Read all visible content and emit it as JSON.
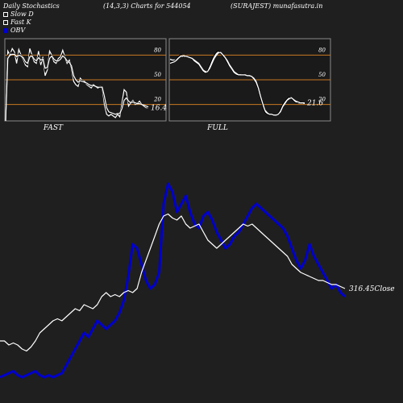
{
  "header": {
    "title": "Daily Stochastics",
    "params": "(14,3,3) Charts for 544054",
    "symbol": "(SURAJEST) munafasutra.in"
  },
  "legend": {
    "items": [
      {
        "label": "Slow  D",
        "icon": "white-square"
      },
      {
        "label": "Fast K",
        "icon": "white-square"
      },
      {
        "label": "OBV",
        "icon": "blue-square"
      }
    ]
  },
  "colors": {
    "background": "#1f1f1f",
    "panel": "#1a1a1a",
    "grid": "#c87820",
    "stoch_line": "#ffffff",
    "obv": "#0000cc",
    "price": "#ffffff"
  },
  "chart_data": [
    {
      "type": "line",
      "title": "FAST",
      "y_ticks": [
        80,
        50,
        20
      ],
      "ylim": [
        0,
        100
      ],
      "last_value_label": "16.4",
      "series": [
        {
          "values": [
            0,
            85,
            80,
            88,
            84,
            70,
            87,
            80,
            75,
            68,
            66,
            88,
            80,
            72,
            70,
            85,
            68,
            78,
            55,
            62,
            85,
            80,
            72,
            70,
            76,
            78,
            86,
            78,
            70,
            74,
            64,
            48,
            44,
            42,
            52,
            49,
            48,
            44,
            42,
            40,
            44,
            42,
            40,
            42,
            41,
            20,
            8,
            6,
            8,
            6,
            4,
            8,
            5,
            22,
            38,
            35,
            18,
            22,
            25,
            20,
            21,
            24,
            20,
            18,
            16,
            16
          ]
        },
        {
          "values": [
            0,
            80,
            82,
            84,
            82,
            76,
            82,
            80,
            76,
            70,
            68,
            82,
            80,
            74,
            72,
            80,
            72,
            76,
            60,
            64,
            80,
            80,
            74,
            72,
            74,
            76,
            82,
            78,
            72,
            72,
            66,
            52,
            47,
            45,
            50,
            49,
            47,
            45,
            43,
            42,
            43,
            42,
            41,
            42,
            41,
            25,
            12,
            9,
            9,
            8,
            7,
            9,
            8,
            18,
            30,
            30,
            22,
            22,
            24,
            21,
            21,
            22,
            20,
            19,
            17,
            16
          ]
        },
        {
          "values": [
            0,
            76,
            80,
            81,
            81,
            78,
            80,
            79,
            77,
            72,
            70,
            78,
            79,
            75,
            73,
            77,
            74,
            75,
            64,
            65,
            76,
            79,
            75,
            73,
            73,
            75,
            79,
            77,
            73,
            71,
            67,
            55,
            50,
            47,
            49,
            48,
            47,
            46,
            44,
            43,
            43,
            42,
            41,
            41,
            41,
            30,
            16,
            11,
            10,
            9,
            8,
            9,
            9,
            15,
            25,
            28,
            24,
            22,
            23,
            22,
            21,
            21,
            20,
            19,
            18,
            17
          ]
        }
      ]
    },
    {
      "type": "line",
      "title": "FULL",
      "y_ticks": [
        80,
        50,
        20
      ],
      "ylim": [
        0,
        100
      ],
      "last_value_label": "21.6",
      "series": [
        {
          "values": [
            75,
            74,
            74,
            75,
            77,
            79,
            78,
            79,
            78,
            77,
            76,
            74,
            72,
            70,
            66,
            62,
            60,
            61,
            66,
            72,
            78,
            82,
            84,
            83,
            80,
            77,
            73,
            68,
            64,
            60,
            58,
            56,
            56,
            56,
            56,
            55,
            55,
            54,
            52,
            48,
            40,
            30,
            20,
            12,
            9,
            8,
            8,
            7,
            7,
            8,
            12,
            18,
            22,
            26,
            28,
            28,
            25,
            23,
            22,
            22,
            22,
            22
          ]
        },
        {
          "values": [
            72,
            72,
            73,
            76,
            79,
            81,
            78,
            80,
            78,
            77,
            75,
            72,
            70,
            68,
            64,
            60,
            58,
            62,
            68,
            75,
            80,
            84,
            85,
            82,
            78,
            75,
            70,
            66,
            62,
            58,
            56,
            55,
            56,
            57,
            56,
            55,
            55,
            53,
            50,
            45,
            37,
            27,
            17,
            10,
            8,
            7,
            7,
            6,
            7,
            9,
            14,
            20,
            24,
            27,
            29,
            27,
            24,
            22,
            22,
            23,
            22,
            21
          ]
        },
        {
          "values": [
            70,
            71,
            72,
            74,
            77,
            79,
            79,
            79,
            78,
            77,
            76,
            73,
            71,
            69,
            65,
            61,
            59,
            60,
            64,
            70,
            76,
            80,
            83,
            83,
            80,
            77,
            72,
            67,
            63,
            59,
            57,
            56,
            56,
            56,
            56,
            55,
            55,
            54,
            51,
            47,
            40,
            30,
            21,
            13,
            10,
            8,
            8,
            7,
            7,
            8,
            11,
            17,
            21,
            25,
            27,
            28,
            26,
            24,
            23,
            22,
            22,
            21
          ]
        }
      ]
    },
    {
      "type": "line",
      "last_value_label": "316.45Close",
      "ylim": [
        0,
        100
      ],
      "series": [
        {
          "name": "OBV",
          "values": [
            4,
            5,
            6,
            7,
            5,
            4,
            5,
            6,
            7,
            5,
            4,
            5,
            4,
            5,
            6,
            10,
            14,
            18,
            22,
            26,
            24,
            28,
            32,
            30,
            28,
            30,
            32,
            36,
            42,
            54,
            70,
            68,
            60,
            52,
            48,
            50,
            56,
            90,
            100,
            96,
            86,
            90,
            94,
            86,
            80,
            78,
            84,
            86,
            82,
            76,
            72,
            68,
            70,
            74,
            76,
            80,
            84,
            88,
            90,
            88,
            86,
            84,
            82,
            80,
            78,
            74,
            68,
            62,
            58,
            62,
            70,
            64,
            60,
            56,
            52,
            48,
            50,
            46,
            44
          ]
        },
        {
          "name": "Close",
          "values": [
            22,
            22,
            20,
            21,
            20,
            18,
            17,
            19,
            22,
            26,
            28,
            30,
            32,
            33,
            32,
            34,
            36,
            38,
            37,
            40,
            39,
            38,
            40,
            44,
            46,
            44,
            45,
            44,
            46,
            47,
            46,
            48,
            56,
            62,
            68,
            74,
            80,
            84,
            85,
            83,
            82,
            84,
            80,
            78,
            79,
            80,
            76,
            72,
            70,
            68,
            70,
            72,
            74,
            76,
            78,
            80,
            79,
            80,
            78,
            76,
            74,
            72,
            70,
            68,
            66,
            64,
            60,
            58,
            56,
            55,
            54,
            53,
            52,
            52,
            51,
            50,
            50,
            49,
            48
          ]
        }
      ]
    }
  ]
}
